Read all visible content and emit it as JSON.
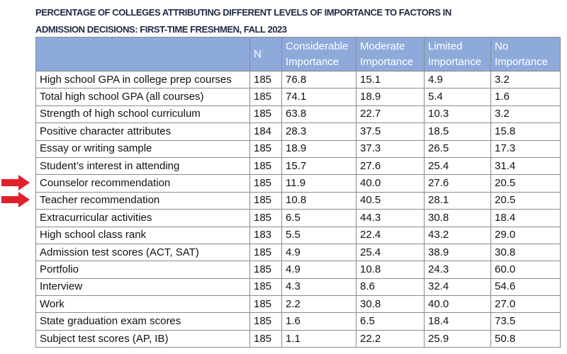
{
  "header": {
    "title_lines": [
      "PERCENTAGE OF COLLEGES ATTRIBUTING DIFFERENT LEVELS OF IMPORTANCE TO FACTORS IN",
      "ADMISSION DECISIONS: FIRST-TIME FRESHMEN, FALL 2023"
    ]
  },
  "table": {
    "columns": [
      "",
      "N",
      "Considerable Importance",
      "Moderate Importance",
      "Limited Importance",
      "No Importance"
    ],
    "rows": [
      [
        "High school GPA in college prep courses",
        "185",
        "76.8",
        "15.1",
        "4.9",
        "3.2"
      ],
      [
        "Total high school GPA (all courses)",
        "185",
        "74.1",
        "18.9",
        "5.4",
        "1.6"
      ],
      [
        "Strength of high school curriculum",
        "185",
        "63.8",
        "22.7",
        "10.3",
        "3.2"
      ],
      [
        "Positive character attributes",
        "184",
        "28.3",
        "37.5",
        "18.5",
        "15.8"
      ],
      [
        "Essay or writing sample",
        "185",
        "18.9",
        "37.3",
        "26.5",
        "17.3"
      ],
      [
        "Student’s interest in attending",
        "185",
        "15.7",
        "27.6",
        "25.4",
        "31.4"
      ],
      [
        "Counselor recommendation",
        "185",
        "11.9",
        "40.0",
        "27.6",
        "20.5"
      ],
      [
        "Teacher recommendation",
        "185",
        "10.8",
        "40.5",
        "28.1",
        "20.5"
      ],
      [
        "Extracurricular activities",
        "185",
        "6.5",
        "44.3",
        "30.8",
        "18.4"
      ],
      [
        "High school class rank",
        "183",
        "5.5",
        "22.4",
        "43.2",
        "29.0"
      ],
      [
        "Admission test scores (ACT, SAT)",
        "185",
        "4.9",
        "25.4",
        "38.9",
        "30.8"
      ],
      [
        "Portfolio",
        "185",
        "4.9",
        "10.8",
        "24.3",
        "60.0"
      ],
      [
        "Interview",
        "185",
        "4.3",
        "8.6",
        "32.4",
        "54.6"
      ],
      [
        "Work",
        "185",
        "2.2",
        "30.8",
        "40.0",
        "27.0"
      ],
      [
        "State graduation exam scores",
        "185",
        "1.6",
        "6.5",
        "18.4",
        "73.5"
      ],
      [
        "Subject test scores (AP, IB)",
        "185",
        "1.1",
        "22.2",
        "25.9",
        "50.8"
      ]
    ]
  }
}
